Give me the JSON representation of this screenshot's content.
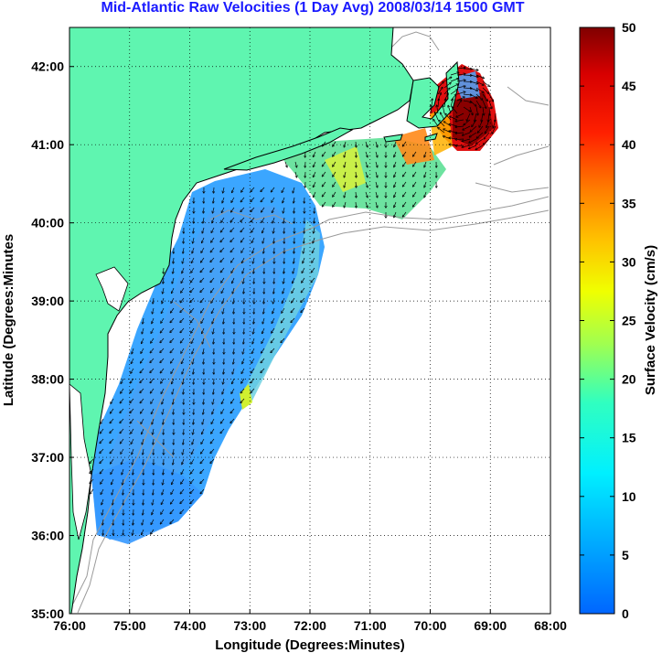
{
  "title": "Mid-Atlantic Raw Velocities (1 Day Avg) 2008/03/14 1500 GMT",
  "map": {
    "xlabel": "Longitude (Degrees:Minutes)",
    "ylabel": "Latitude (Degrees:Minutes",
    "x_ticks": [
      "76:00",
      "75:00",
      "74:00",
      "73:00",
      "72:00",
      "71:00",
      "70:00",
      "69:00",
      "68:00"
    ],
    "y_ticks": [
      "42:00",
      "41:00",
      "40:00",
      "39:00",
      "38:00",
      "37:00",
      "36:00",
      "35:00"
    ],
    "lon_range": [
      -76,
      -68
    ],
    "lat_range": [
      35,
      42.5
    ],
    "grid": true,
    "colors": {
      "land": "#5ff5b0",
      "water": "#ffffff",
      "coast": "#000000",
      "bathymetry": "#9a9a9a",
      "grid": "#000000"
    }
  },
  "colorbar": {
    "label": "Surface Velocity (cm/s)",
    "ticks": [
      "0",
      "5",
      "10",
      "15",
      "20",
      "25",
      "30",
      "35",
      "40",
      "45",
      "50"
    ],
    "range": [
      0,
      50
    ],
    "colormap": "jet"
  }
}
